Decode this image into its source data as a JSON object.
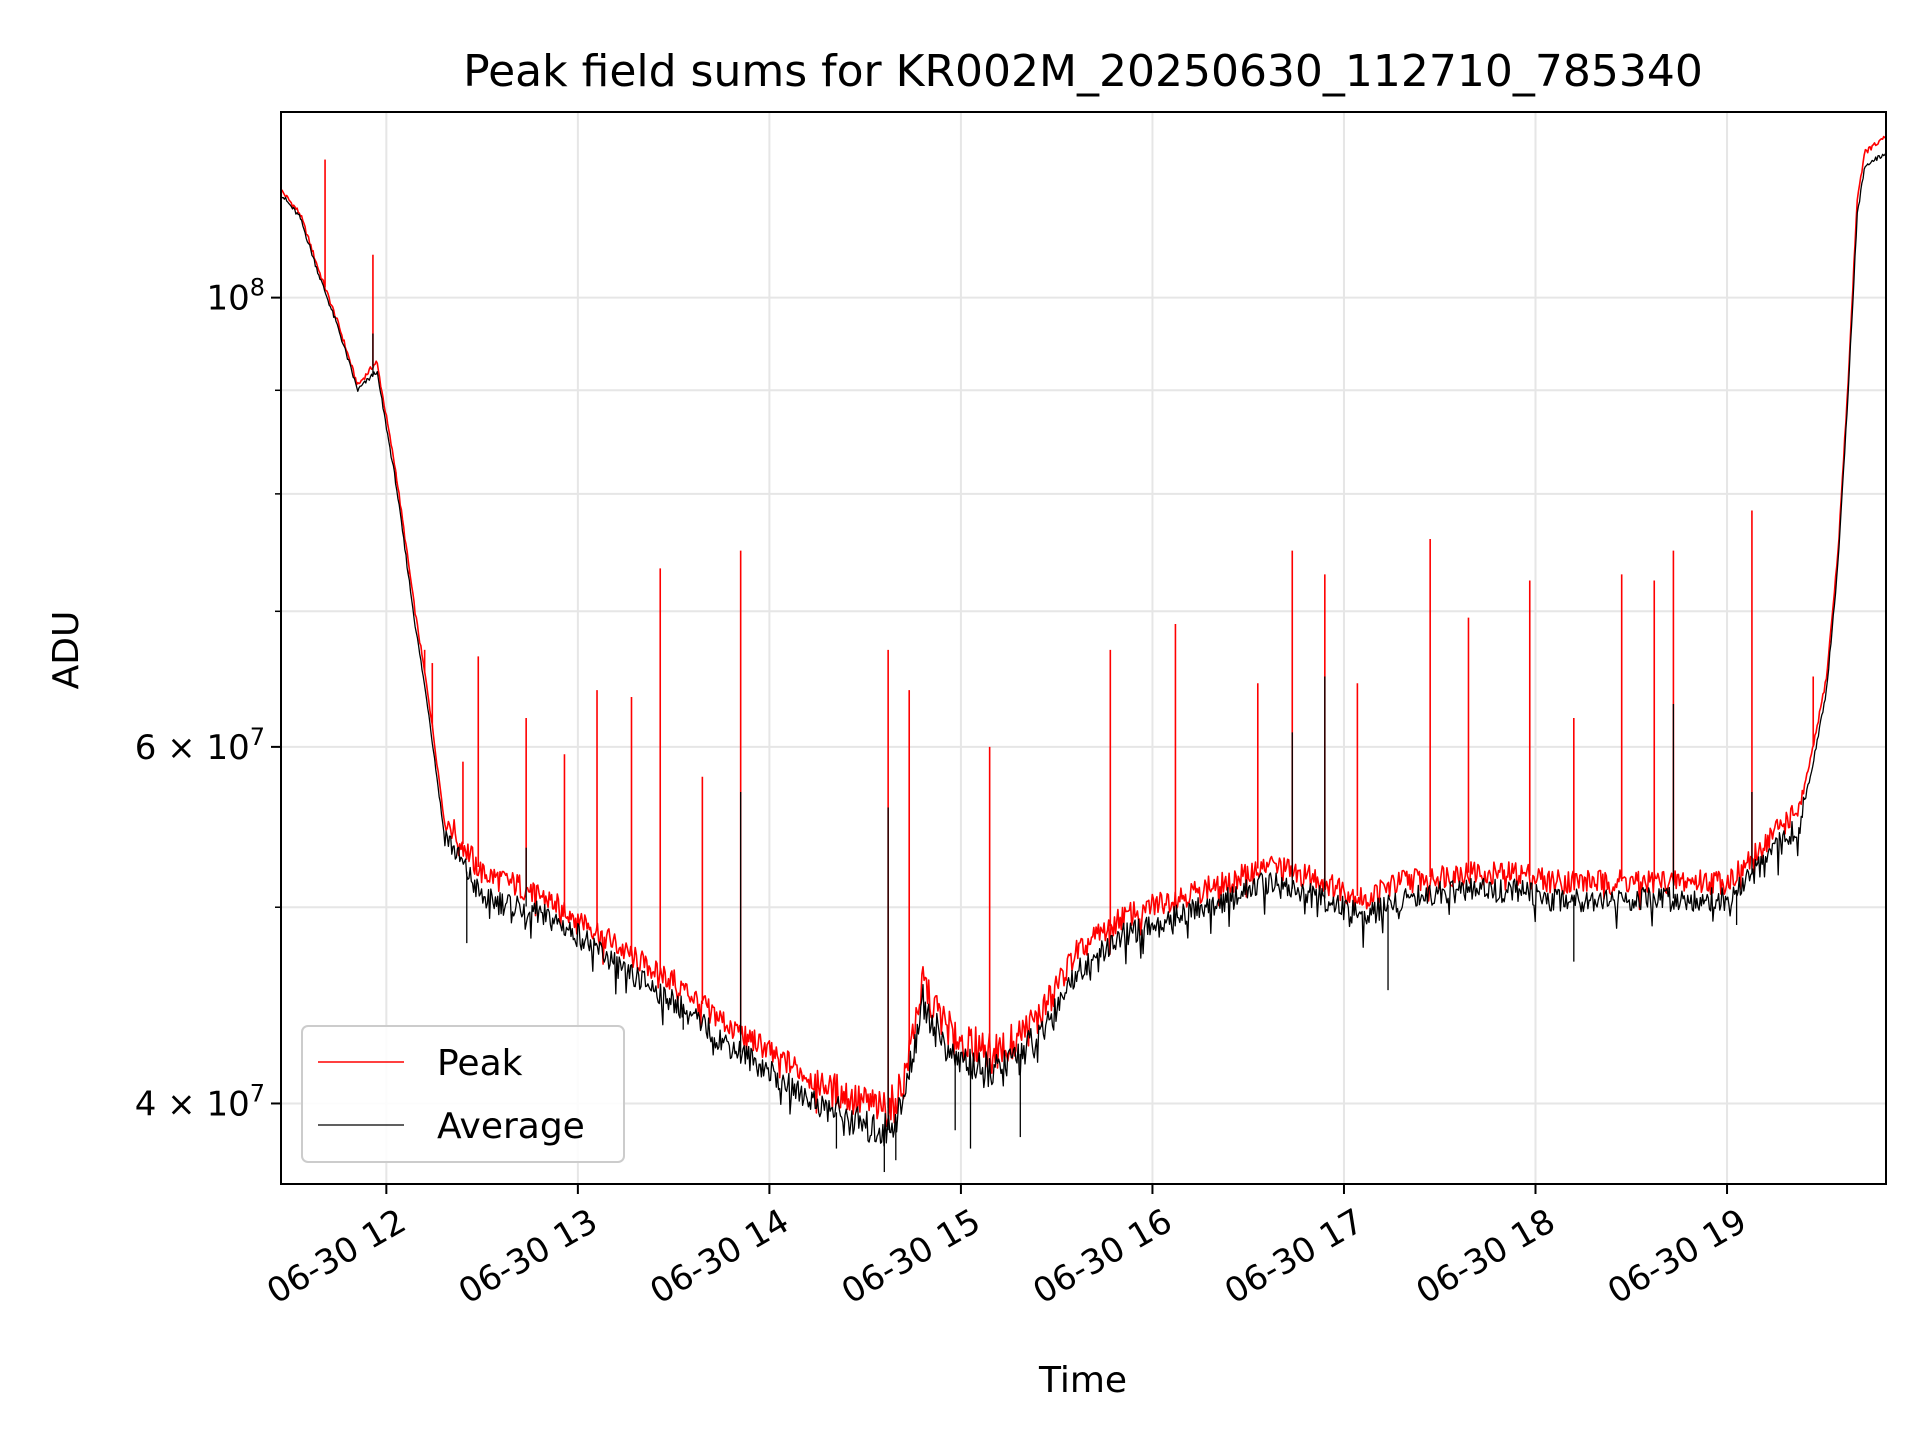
{
  "chart_data": {
    "type": "line",
    "title": "Peak field sums for KR002M_20250630_112710_785340",
    "xlabel": "Time",
    "ylabel": "ADU",
    "yscale": "log",
    "xlim": [
      11.45,
      19.83
    ],
    "ylim": [
      36500000,
      123500000
    ],
    "x_ticks": [
      {
        "value": 12,
        "label": "06-30 12"
      },
      {
        "value": 13,
        "label": "06-30 13"
      },
      {
        "value": 14,
        "label": "06-30 14"
      },
      {
        "value": 15,
        "label": "06-30 15"
      },
      {
        "value": 16,
        "label": "06-30 16"
      },
      {
        "value": 17,
        "label": "06-30 17"
      },
      {
        "value": 18,
        "label": "06-30 18"
      },
      {
        "value": 19,
        "label": "06-30 19"
      }
    ],
    "y_major_ticks": [
      {
        "value": 40000000,
        "mantissa": "4",
        "exponent": "7"
      },
      {
        "value": 60000000,
        "mantissa": "6",
        "exponent": "7"
      },
      {
        "value": 100000000,
        "mantissa": "",
        "exponent": "8"
      }
    ],
    "y_minor_ticks": [
      50000000,
      70000000,
      80000000,
      90000000
    ],
    "grid": true,
    "legend_position": "lower-left",
    "series": [
      {
        "name": "Peak",
        "color": "#ff0000",
        "baseline": [
          [
            11.45,
            113000000
          ],
          [
            11.55,
            110000000
          ],
          [
            11.65,
            103000000
          ],
          [
            11.75,
            97000000
          ],
          [
            11.85,
            90500000
          ],
          [
            11.95,
            93000000
          ],
          [
            12.05,
            82000000
          ],
          [
            12.15,
            70000000
          ],
          [
            12.22,
            63500000
          ],
          [
            12.3,
            55500000
          ],
          [
            12.5,
            52000000
          ],
          [
            12.75,
            51000000
          ],
          [
            13.0,
            49500000
          ],
          [
            13.25,
            47500000
          ],
          [
            13.5,
            46000000
          ],
          [
            13.75,
            44000000
          ],
          [
            14.0,
            42500000
          ],
          [
            14.25,
            41000000
          ],
          [
            14.5,
            40000000
          ],
          [
            14.62,
            39800000
          ],
          [
            14.7,
            41000000
          ],
          [
            14.8,
            46000000
          ],
          [
            14.9,
            44000000
          ],
          [
            15.0,
            43000000
          ],
          [
            15.2,
            42500000
          ],
          [
            15.4,
            44000000
          ],
          [
            15.6,
            47500000
          ],
          [
            15.85,
            49500000
          ],
          [
            16.1,
            50500000
          ],
          [
            16.4,
            51500000
          ],
          [
            16.6,
            52500000
          ],
          [
            16.9,
            51500000
          ],
          [
            17.1,
            50500000
          ],
          [
            17.3,
            51500000
          ],
          [
            17.6,
            52000000
          ],
          [
            17.9,
            52000000
          ],
          [
            18.1,
            51500000
          ],
          [
            18.3,
            51500000
          ],
          [
            18.6,
            51500000
          ],
          [
            18.8,
            51500000
          ],
          [
            19.0,
            51500000
          ],
          [
            19.1,
            52500000
          ],
          [
            19.25,
            54500000
          ],
          [
            19.38,
            56000000
          ],
          [
            19.45,
            60000000
          ],
          [
            19.52,
            65000000
          ],
          [
            19.58,
            75000000
          ],
          [
            19.63,
            90000000
          ],
          [
            19.68,
            112000000
          ],
          [
            19.72,
            118000000
          ],
          [
            19.83,
            120000000
          ]
        ],
        "spikes": [
          [
            11.68,
            117000000
          ],
          [
            11.93,
            105000000
          ],
          [
            12.05,
            81000000
          ],
          [
            12.12,
            73000000
          ],
          [
            12.2,
            67000000
          ],
          [
            12.24,
            66000000
          ],
          [
            12.4,
            59000000
          ],
          [
            12.48,
            66500000
          ],
          [
            12.73,
            62000000
          ],
          [
            12.93,
            59500000
          ],
          [
            13.1,
            64000000
          ],
          [
            13.28,
            63500000
          ],
          [
            13.43,
            73500000
          ],
          [
            13.65,
            58000000
          ],
          [
            13.85,
            75000000
          ],
          [
            14.62,
            67000000
          ],
          [
            14.73,
            64000000
          ],
          [
            15.15,
            60000000
          ],
          [
            15.78,
            67000000
          ],
          [
            16.12,
            69000000
          ],
          [
            16.55,
            64500000
          ],
          [
            16.73,
            75000000
          ],
          [
            16.9,
            73000000
          ],
          [
            17.07,
            64500000
          ],
          [
            17.45,
            76000000
          ],
          [
            17.65,
            69500000
          ],
          [
            17.97,
            72500000
          ],
          [
            18.2,
            62000000
          ],
          [
            18.45,
            73000000
          ],
          [
            18.62,
            72500000
          ],
          [
            18.72,
            75000000
          ],
          [
            19.13,
            78500000
          ],
          [
            19.45,
            65000000
          ]
        ],
        "line_width": 1.6
      },
      {
        "name": "Average",
        "color": "#000000",
        "baseline": [
          [
            11.45,
            112500000
          ],
          [
            11.55,
            109500000
          ],
          [
            11.65,
            102500000
          ],
          [
            11.75,
            96500000
          ],
          [
            11.85,
            90000000
          ],
          [
            11.95,
            92000000
          ],
          [
            12.05,
            81000000
          ],
          [
            12.15,
            69000000
          ],
          [
            12.22,
            62500000
          ],
          [
            12.3,
            54500000
          ],
          [
            12.5,
            50500000
          ],
          [
            12.75,
            50000000
          ],
          [
            13.0,
            48500000
          ],
          [
            13.25,
            46500000
          ],
          [
            13.5,
            45000000
          ],
          [
            13.75,
            43000000
          ],
          [
            14.0,
            41500000
          ],
          [
            14.25,
            40000000
          ],
          [
            14.5,
            39000000
          ],
          [
            14.62,
            38800000
          ],
          [
            14.7,
            40000000
          ],
          [
            14.8,
            45000000
          ],
          [
            14.9,
            43000000
          ],
          [
            15.0,
            42000000
          ],
          [
            15.2,
            41500000
          ],
          [
            15.4,
            43000000
          ],
          [
            15.6,
            46500000
          ],
          [
            15.85,
            48500000
          ],
          [
            16.1,
            49500000
          ],
          [
            16.4,
            50500000
          ],
          [
            16.6,
            51500000
          ],
          [
            16.9,
            50500000
          ],
          [
            17.1,
            49500000
          ],
          [
            17.3,
            50500000
          ],
          [
            17.6,
            51000000
          ],
          [
            17.9,
            51000000
          ],
          [
            18.1,
            50500000
          ],
          [
            18.3,
            50500000
          ],
          [
            18.6,
            50500000
          ],
          [
            18.8,
            50500000
          ],
          [
            19.0,
            50500000
          ],
          [
            19.1,
            51500000
          ],
          [
            19.25,
            53500000
          ],
          [
            19.38,
            55000000
          ],
          [
            19.45,
            59000000
          ],
          [
            19.52,
            64000000
          ],
          [
            19.58,
            74000000
          ],
          [
            19.63,
            89000000
          ],
          [
            19.68,
            110000000
          ],
          [
            19.72,
            116000000
          ],
          [
            19.83,
            118000000
          ]
        ],
        "spikes": [
          [
            11.93,
            96000000
          ],
          [
            12.73,
            53500000
          ],
          [
            13.85,
            57000000
          ],
          [
            14.62,
            56000000
          ],
          [
            16.73,
            61000000
          ],
          [
            16.9,
            65000000
          ],
          [
            18.72,
            63000000
          ],
          [
            19.13,
            57000000
          ]
        ],
        "dips": [
          [
            12.42,
            48000000
          ],
          [
            13.55,
            43500000
          ],
          [
            14.35,
            38000000
          ],
          [
            14.6,
            37000000
          ],
          [
            14.66,
            37500000
          ],
          [
            14.97,
            38800000
          ],
          [
            15.05,
            38000000
          ],
          [
            15.31,
            38500000
          ],
          [
            17.23,
            45500000
          ],
          [
            18.2,
            47000000
          ],
          [
            19.05,
            49000000
          ]
        ],
        "line_width": 1.3
      }
    ]
  }
}
